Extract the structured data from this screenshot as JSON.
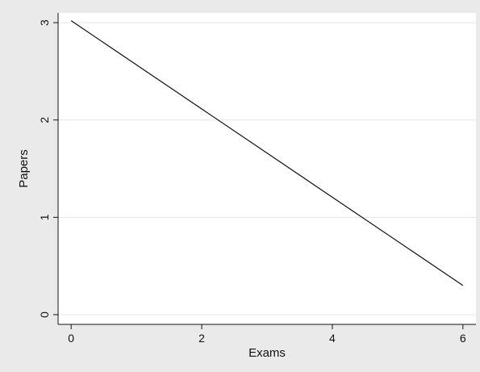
{
  "chart_data": {
    "type": "line",
    "xlabel": "Exams",
    "ylabel": "Papers",
    "xlim": [
      -0.2,
      6.2
    ],
    "ylim": [
      -0.1,
      3.1
    ],
    "x_ticks": [
      0,
      2,
      4,
      6
    ],
    "y_ticks": [
      0,
      1,
      2,
      3
    ],
    "x_tick_labels": [
      "0",
      "2",
      "4",
      "6"
    ],
    "y_tick_labels": [
      "0",
      "1",
      "2",
      "3"
    ],
    "grid": "horizontal",
    "series": [
      {
        "x": [
          0,
          6
        ],
        "y": [
          3.02,
          0.3
        ]
      }
    ],
    "colors": {
      "outer_background": "#eaeaea",
      "plot_background": "#ffffff",
      "line": "#111111",
      "grid": "#e6e6e6"
    }
  }
}
